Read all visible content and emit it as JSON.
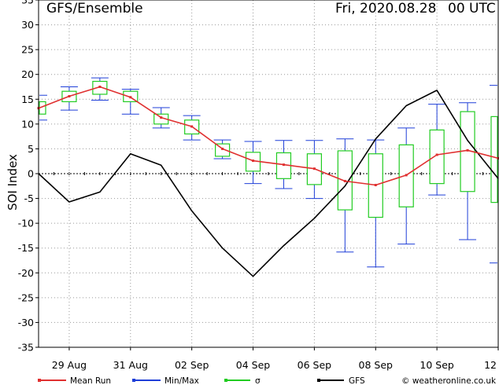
{
  "header": {
    "title": "GFS/Ensemble",
    "date_label": "Fri, 2020.08.28",
    "run_label": "00 UTC"
  },
  "colors": {
    "mean_run": "#e03030",
    "min_max": "#1f3fd8",
    "sigma": "#22cc22",
    "gfs": "#000000",
    "grid": "#999999",
    "background": "#ffffff"
  },
  "legend": {
    "items": [
      {
        "label": "Mean Run",
        "color": "#e03030"
      },
      {
        "label": "Min/Max",
        "color": "#1f3fd8"
      },
      {
        "label": "σ",
        "color": "#22cc22"
      },
      {
        "label": "GFS",
        "color": "#000000"
      }
    ],
    "credit": "© weatheronline.co.uk"
  },
  "chart_data": {
    "type": "line",
    "ylabel": "SOI Index",
    "ylim": [
      -35,
      35
    ],
    "yticks": [
      35,
      30,
      25,
      20,
      15,
      10,
      5,
      0,
      -5,
      -10,
      -15,
      -20,
      -25,
      -30,
      -35
    ],
    "xlim": [
      0,
      30
    ],
    "xticks": [
      {
        "x": 2,
        "label": "29 Aug"
      },
      {
        "x": 6,
        "label": "31 Aug"
      },
      {
        "x": 10,
        "label": "02 Sep"
      },
      {
        "x": 14,
        "label": "04 Sep"
      },
      {
        "x": 18,
        "label": "06 Sep"
      },
      {
        "x": 22,
        "label": "08 Sep"
      },
      {
        "x": 26,
        "label": "10 Sep"
      },
      {
        "x": 30,
        "label": "12"
      }
    ],
    "grid": true,
    "zero_line": true,
    "series": [
      {
        "name": "GFS",
        "x": [
          0,
          2,
          4,
          6,
          8,
          10,
          12,
          14,
          16,
          18,
          20,
          22,
          24,
          26,
          28,
          30
        ],
        "values": [
          0,
          -5.7,
          -3.7,
          4,
          1.7,
          -7.5,
          -15,
          -20.7,
          -14.5,
          -9,
          -2.5,
          7,
          13.7,
          16.8,
          6.7,
          -1
        ]
      },
      {
        "name": "Mean Run",
        "x": [
          0,
          2,
          4,
          6,
          8,
          10,
          12,
          14,
          16,
          18,
          20,
          22,
          24,
          26,
          28,
          30
        ],
        "values": [
          13.2,
          15.6,
          17.5,
          15.4,
          11.3,
          9.5,
          5,
          2.6,
          1.8,
          1,
          -1.5,
          -2.3,
          -0.3,
          3.8,
          4.7,
          3.1
        ]
      }
    ],
    "ensemble": [
      {
        "x": 0,
        "min": 10.8,
        "max": 15.8,
        "sigma_low": 12,
        "sigma_high": 14.5
      },
      {
        "x": 2,
        "min": 12.8,
        "max": 17.5,
        "sigma_low": 14.5,
        "sigma_high": 16.6
      },
      {
        "x": 4,
        "min": 14.8,
        "max": 19.3,
        "sigma_low": 16,
        "sigma_high": 18.6
      },
      {
        "x": 6,
        "min": 12,
        "max": 17,
        "sigma_low": 14.5,
        "sigma_high": 16.6
      },
      {
        "x": 8,
        "min": 9.2,
        "max": 13.3,
        "sigma_low": 10,
        "sigma_high": 12
      },
      {
        "x": 10,
        "min": 6.8,
        "max": 11.7,
        "sigma_low": 8,
        "sigma_high": 10.8
      },
      {
        "x": 12,
        "min": 3,
        "max": 6.8,
        "sigma_low": 3.5,
        "sigma_high": 6
      },
      {
        "x": 14,
        "min": -2,
        "max": 6.5,
        "sigma_low": 0.5,
        "sigma_high": 4.3
      },
      {
        "x": 16,
        "min": -3,
        "max": 6.7,
        "sigma_low": -1,
        "sigma_high": 4.2
      },
      {
        "x": 18,
        "min": -5,
        "max": 6.7,
        "sigma_low": -2.2,
        "sigma_high": 4
      },
      {
        "x": 20,
        "min": -15.8,
        "max": 7,
        "sigma_low": -7.3,
        "sigma_high": 4.6
      },
      {
        "x": 22,
        "min": -18.8,
        "max": 6.8,
        "sigma_low": -8.8,
        "sigma_high": 4
      },
      {
        "x": 24,
        "min": -14.2,
        "max": 9.2,
        "sigma_low": -6.7,
        "sigma_high": 5.8
      },
      {
        "x": 26,
        "min": -4.3,
        "max": 14,
        "sigma_low": -2,
        "sigma_high": 8.8
      },
      {
        "x": 28,
        "min": -13.3,
        "max": 14.3,
        "sigma_low": -3.6,
        "sigma_high": 12.5
      },
      {
        "x": 30,
        "min": -18,
        "max": 17.8,
        "sigma_low": -5.8,
        "sigma_high": 11.5
      }
    ]
  }
}
